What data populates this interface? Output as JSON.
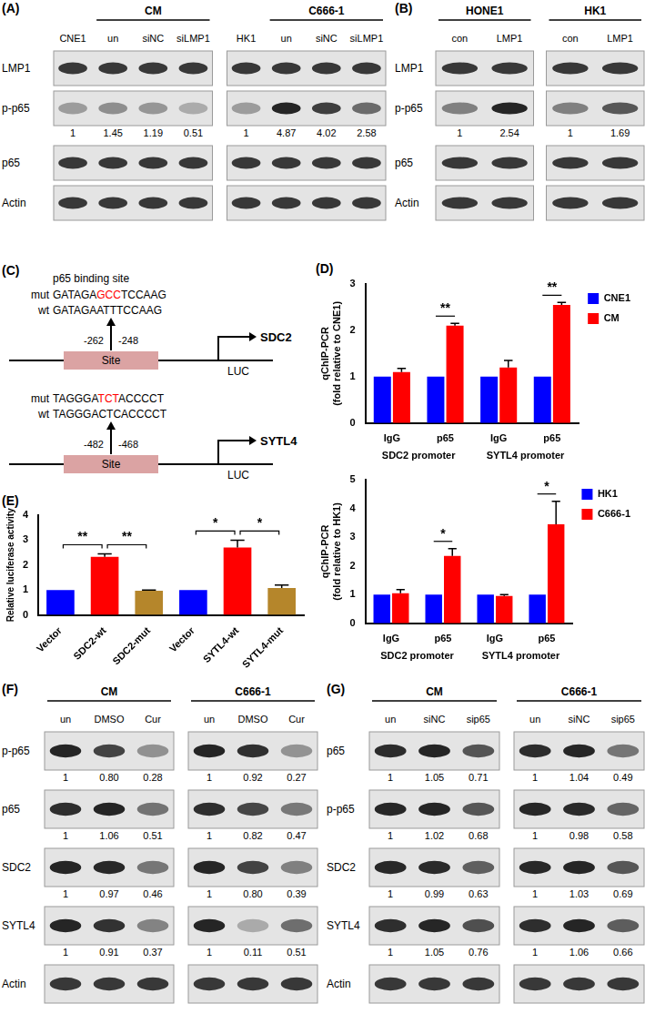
{
  "panels": {
    "A": {
      "label": "(A)",
      "groups": [
        {
          "control": "CNE1",
          "label": "CM",
          "lanes": [
            "un",
            "siNC",
            "siLMP1"
          ]
        },
        {
          "control": "HK1",
          "label": "C666-1",
          "lanes": [
            "un",
            "siNC",
            "siLMP1"
          ]
        }
      ],
      "rows": [
        {
          "name": "LMP1"
        },
        {
          "name": "p-p65",
          "quant": [
            "1",
            "1.45",
            "1.19",
            "0.51",
            "1",
            "4.87",
            "4.02",
            "2.58"
          ]
        },
        {
          "name": "p65"
        },
        {
          "name": "Actin"
        }
      ]
    },
    "B": {
      "label": "(B)",
      "groups": [
        {
          "label": "HONE1",
          "lanes": [
            "con",
            "LMP1"
          ]
        },
        {
          "label": "HK1",
          "lanes": [
            "con",
            "LMP1"
          ]
        }
      ],
      "rows": [
        {
          "name": "LMP1"
        },
        {
          "name": "p-p65",
          "quant": [
            "1",
            "2.54",
            "1",
            "1.69"
          ]
        },
        {
          "name": "p65"
        },
        {
          "name": "Actin"
        }
      ]
    },
    "C": {
      "label": "(C)",
      "promoters": [
        {
          "site_title": "p65 binding site",
          "mut": {
            "label": "mut",
            "before": "GATAGA",
            "changed": "GCC",
            "after": "TCCAAG"
          },
          "wt": {
            "label": "wt",
            "sequence": "GATAGAATTTCCAAG"
          },
          "start": "-262",
          "end": "-248",
          "site": "Site",
          "gene": "SDC2",
          "reporter": "LUC"
        },
        {
          "mut": {
            "label": "mut",
            "before": "TAGGGA",
            "changed": "TCT",
            "after": "ACCCCT"
          },
          "wt": {
            "label": "wt",
            "sequence": "TAGGGACTCACCCCT"
          },
          "start": "-482",
          "end": "-468",
          "site": "Site",
          "gene": "SYTL4",
          "reporter": "LUC"
        }
      ]
    },
    "D": {
      "label": "(D)"
    },
    "E": {
      "label": "(E)"
    },
    "F": {
      "label": "(F)",
      "groups": [
        {
          "label": "CM",
          "lanes": [
            "un",
            "DMSO",
            "Cur"
          ]
        },
        {
          "label": "C666-1",
          "lanes": [
            "un",
            "DMSO",
            "Cur"
          ]
        }
      ],
      "rows": [
        {
          "name": "p-p65",
          "quant": [
            "1",
            "0.80",
            "0.28",
            "1",
            "0.92",
            "0.27"
          ]
        },
        {
          "name": "p65",
          "quant": [
            "1",
            "1.06",
            "0.51",
            "1",
            "0.82",
            "0.47"
          ]
        },
        {
          "name": "SDC2",
          "quant": [
            "1",
            "0.97",
            "0.46",
            "1",
            "0.80",
            "0.39"
          ]
        },
        {
          "name": "SYTL4",
          "quant": [
            "1",
            "0.91",
            "0.37",
            "1",
            "0.11",
            "0.51"
          ]
        },
        {
          "name": "Actin"
        }
      ]
    },
    "G": {
      "label": "(G)",
      "groups": [
        {
          "label": "CM",
          "lanes": [
            "un",
            "siNC",
            "sip65"
          ]
        },
        {
          "label": "C666-1",
          "lanes": [
            "un",
            "siNC",
            "sip65"
          ]
        }
      ],
      "rows": [
        {
          "name": "p65",
          "quant": [
            "1",
            "1.05",
            "0.71",
            "1",
            "1.04",
            "0.49"
          ]
        },
        {
          "name": "p-p65",
          "quant": [
            "1",
            "1.02",
            "0.68",
            "1",
            "0.98",
            "0.58"
          ]
        },
        {
          "name": "SDC2",
          "quant": [
            "1",
            "0.99",
            "0.63",
            "1",
            "1.03",
            "0.69"
          ]
        },
        {
          "name": "SYTL4",
          "quant": [
            "1",
            "1.05",
            "0.76",
            "1",
            "1.06",
            "0.66"
          ]
        },
        {
          "name": "Actin"
        }
      ]
    }
  },
  "chart_data": [
    {
      "type": "bar",
      "y_label": [
        "qChIP-PCR",
        "(fold relative to CNE1)"
      ],
      "categories": [
        "IgG",
        "p65",
        "IgG",
        "p65"
      ],
      "group_labels": [
        "SDC2 promoter",
        "SYTL4 promoter"
      ],
      "series": [
        {
          "name": "CNE1",
          "color": "#0000ff",
          "values": [
            1,
            1,
            1,
            1
          ]
        },
        {
          "name": "CM",
          "color": "#ff0000",
          "values": [
            1.1,
            2.1,
            1.2,
            2.55
          ],
          "errors": [
            0.08,
            0.05,
            0.15,
            0.05
          ]
        }
      ],
      "ylim": [
        0,
        3
      ],
      "yticks": [
        0,
        1,
        2,
        3
      ],
      "grid": false,
      "legend": "right",
      "significance": [
        {
          "label": "**",
          "category": 1
        },
        {
          "label": "**",
          "category": 3
        }
      ]
    },
    {
      "type": "bar",
      "y_label": [
        "qChIP-PCR",
        "(fold relative to HK1)"
      ],
      "categories": [
        "IgG",
        "p65",
        "IgG",
        "p65"
      ],
      "group_labels": [
        "SDC2 promoter",
        "SYTL4 promoter"
      ],
      "series": [
        {
          "name": "HK1",
          "color": "#0000ff",
          "values": [
            1,
            1,
            1,
            1
          ]
        },
        {
          "name": "C666-1",
          "color": "#ff0000",
          "values": [
            1.05,
            2.35,
            0.95,
            3.45
          ],
          "errors": [
            0.12,
            0.25,
            0.05,
            0.8
          ]
        }
      ],
      "ylim": [
        0,
        5
      ],
      "yticks": [
        0,
        1,
        2,
        3,
        4,
        5
      ],
      "grid": false,
      "legend": "right",
      "significance": [
        {
          "label": "*",
          "category": 1
        },
        {
          "label": "*",
          "category": 3
        }
      ]
    },
    {
      "type": "bar",
      "y_label": "Relative luciferase activity",
      "categories": [
        "Vector",
        "SDC2-wt",
        "SDC2-mut",
        "Vector",
        "SYTL4-wt",
        "SYTL4-mut"
      ],
      "values": [
        1,
        2.33,
        0.97,
        1,
        2.7,
        1.08
      ],
      "errors": [
        0,
        0.12,
        0.03,
        0,
        0.3,
        0.12
      ],
      "colors": [
        "#0000ff",
        "#ff0000",
        "#b5862b",
        "#0000ff",
        "#ff0000",
        "#b5862b"
      ],
      "ylim": [
        0,
        4
      ],
      "yticks": [
        0,
        1,
        2,
        3,
        4
      ],
      "grid": false,
      "significance": [
        {
          "label": "**",
          "from": 0,
          "to": 1
        },
        {
          "label": "**",
          "from": 1,
          "to": 2
        },
        {
          "label": "*",
          "from": 3,
          "to": 4
        },
        {
          "label": "*",
          "from": 4,
          "to": 5
        }
      ]
    }
  ]
}
